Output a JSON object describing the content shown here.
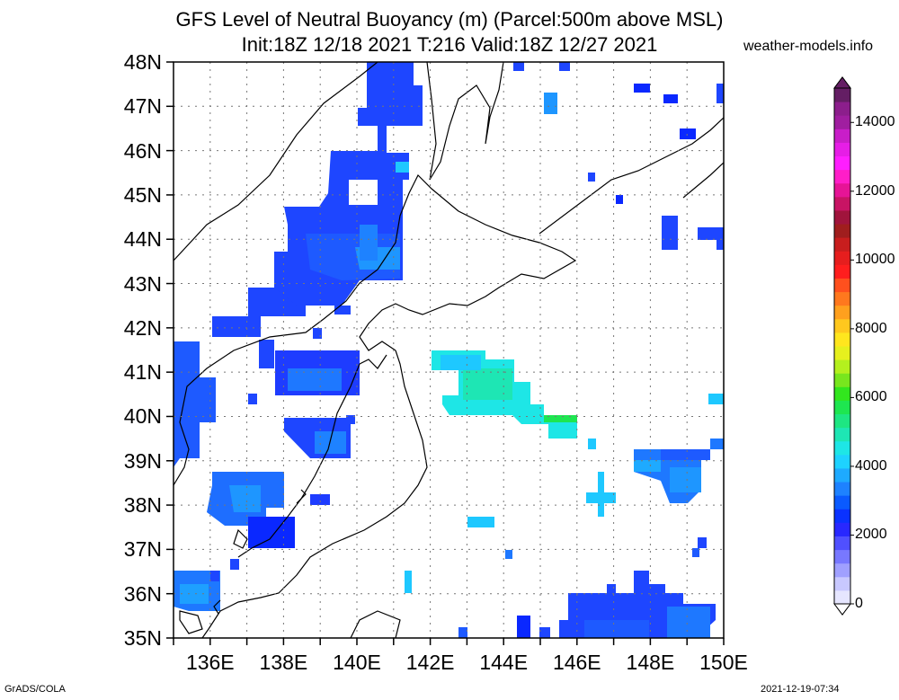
{
  "title_line1": "GFS Level of Neutral Buoyancy (m) (Parcel:500m above MSL)",
  "title_line2": "Init:18Z 12/18 2021 T:216 Valid:18Z 12/27 2021",
  "site": "weather-models.info",
  "footer_left": "GrADS/COLA",
  "footer_right": "2021-12-19-07:34",
  "map": {
    "lon_range": [
      135,
      150
    ],
    "lat_range": [
      35,
      48
    ],
    "lat_labels": [
      "48N",
      "47N",
      "46N",
      "45N",
      "44N",
      "43N",
      "42N",
      "41N",
      "40N",
      "39N",
      "38N",
      "37N",
      "36N",
      "35N"
    ],
    "lon_labels": [
      "136E",
      "138E",
      "140E",
      "142E",
      "144E",
      "146E",
      "148E",
      "150E"
    ]
  },
  "colorbar": {
    "labels": [
      "14000",
      "12000",
      "10000",
      "8000",
      "6000",
      "4000",
      "2000",
      "0"
    ],
    "colors": [
      "#e6e6ff",
      "#c8c8ff",
      "#a0a0ff",
      "#7878ff",
      "#5050ff",
      "#2828ff",
      "#0a32ff",
      "#0a5aff",
      "#1e82ff",
      "#1eaaff",
      "#1ed2ff",
      "#1ee6e6",
      "#1ee6b4",
      "#1ee682",
      "#1ee650",
      "#32e61e",
      "#78e61e",
      "#b4f01e",
      "#e6f01e",
      "#ffe61e",
      "#ffc81e",
      "#ffa01e",
      "#ff781e",
      "#ff501e",
      "#ff1e1e",
      "#e61e1e",
      "#c81e1e",
      "#a01e1e",
      "#a0143c",
      "#c81464",
      "#e61496",
      "#ff1ec8",
      "#ff1eff",
      "#e61ee6",
      "#c81ec8",
      "#a01ea0",
      "#8c1e8c",
      "#641e64"
    ]
  }
}
